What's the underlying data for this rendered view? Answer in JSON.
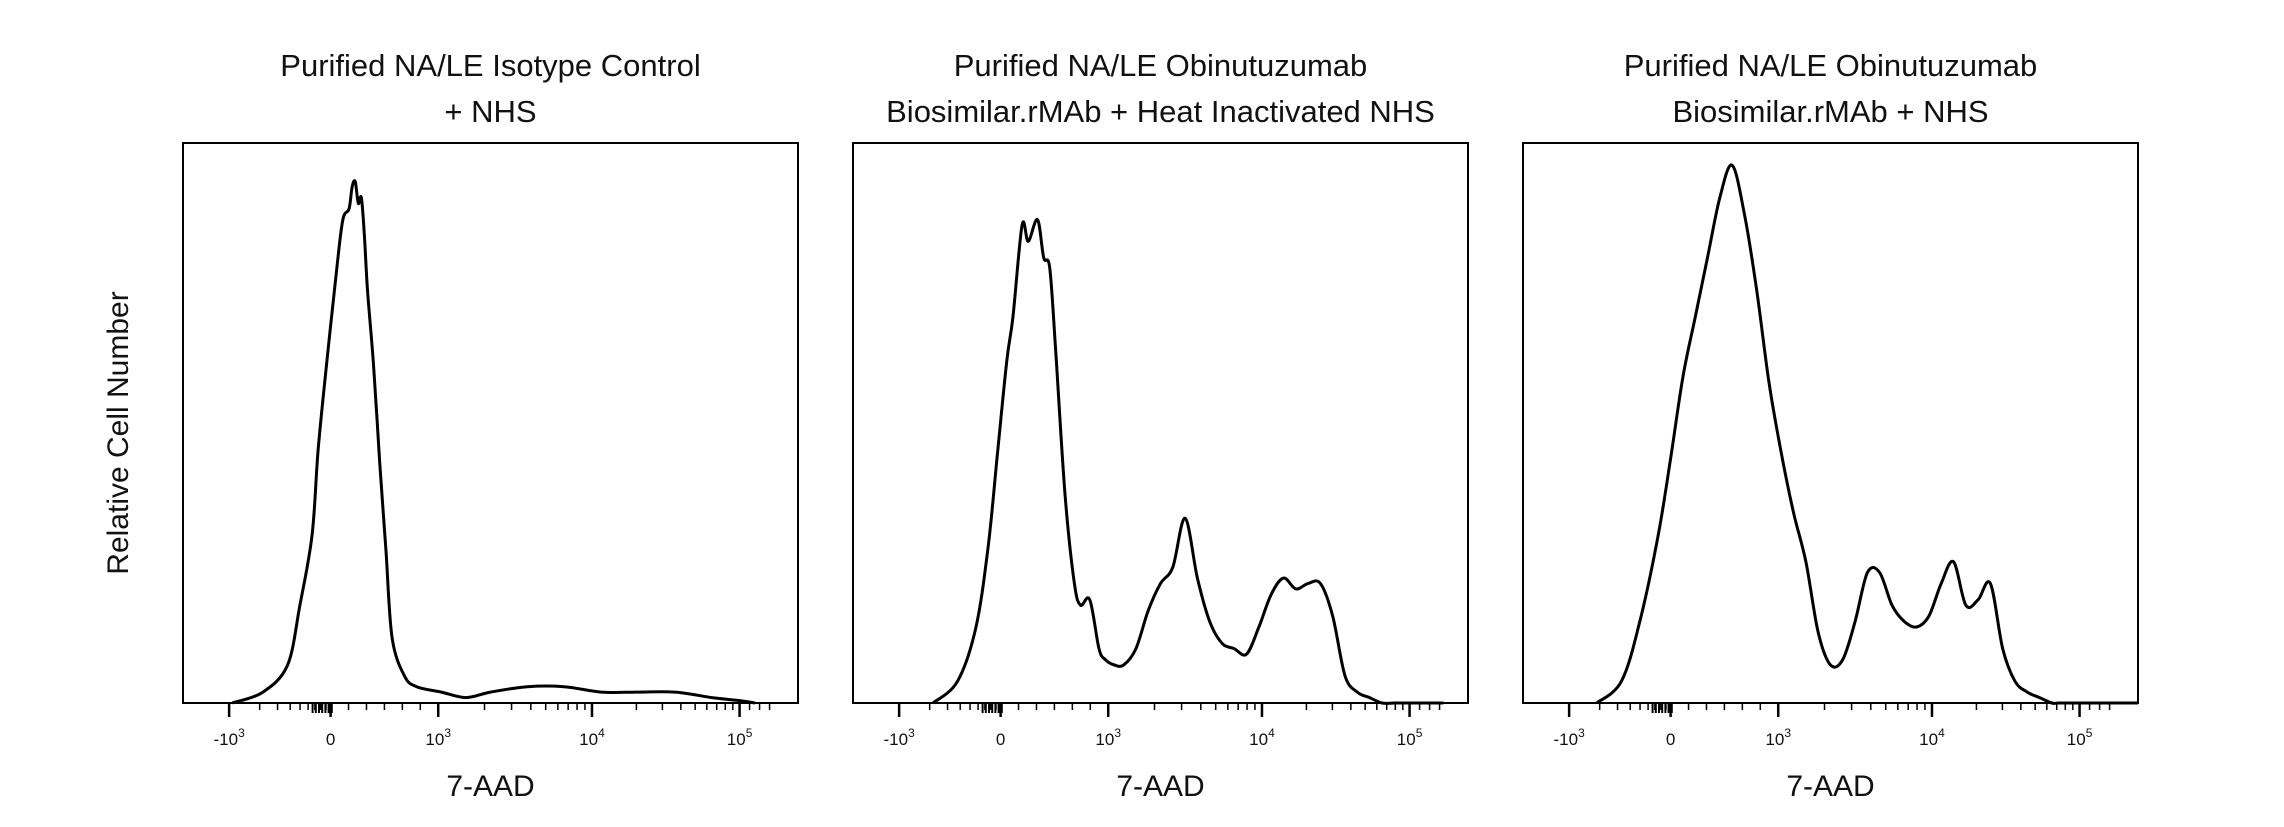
{
  "ylabel": "Relative Cell Number",
  "line_color": "#000000",
  "chart_data": [
    {
      "type": "line",
      "title_lines": [
        "Purified NA/LE Isotype Control",
        "+ NHS"
      ],
      "xlabel": "7-AAD",
      "x_scale": "biexponential",
      "x_tick_labels": [
        "-10^3",
        "0",
        "10^3",
        "10^4",
        "10^5"
      ],
      "y_ticks": "none",
      "series": [
        {
          "x": [
            0.08,
            0.13,
            0.17,
            0.19,
            0.21,
            0.22,
            0.235,
            0.25,
            0.26,
            0.27,
            0.275,
            0.28,
            0.285,
            0.29,
            0.295,
            0.3,
            0.31,
            0.32,
            0.33,
            0.34,
            0.36,
            0.38,
            0.42,
            0.46,
            0.5,
            0.56,
            0.62,
            0.68,
            0.74,
            0.8,
            0.86,
            0.9,
            0.93
          ],
          "y": [
            0.0,
            0.02,
            0.07,
            0.18,
            0.31,
            0.47,
            0.64,
            0.8,
            0.89,
            0.91,
            0.95,
            0.96,
            0.92,
            0.93,
            0.86,
            0.76,
            0.62,
            0.44,
            0.28,
            0.12,
            0.05,
            0.03,
            0.02,
            0.01,
            0.02,
            0.03,
            0.03,
            0.02,
            0.02,
            0.02,
            0.01,
            0.005,
            0.0
          ]
        }
      ]
    },
    {
      "type": "line",
      "title_lines": [
        "Purified NA/LE Obinutuzumab",
        "Biosimilar.rMAb + Heat Inactivated NHS"
      ],
      "xlabel": "7-AAD",
      "x_scale": "biexponential",
      "x_tick_labels": [
        "-10^3",
        "0",
        "10^3",
        "10^4",
        "10^5"
      ],
      "y_ticks": "none",
      "series": [
        {
          "x": [
            0.13,
            0.17,
            0.2,
            0.22,
            0.235,
            0.25,
            0.26,
            0.275,
            0.285,
            0.3,
            0.31,
            0.32,
            0.33,
            0.345,
            0.36,
            0.37,
            0.385,
            0.4,
            0.41,
            0.425,
            0.44,
            0.46,
            0.48,
            0.5,
            0.52,
            0.54,
            0.56,
            0.58,
            0.6,
            0.62,
            0.64,
            0.66,
            0.68,
            0.7,
            0.72,
            0.74,
            0.76,
            0.78,
            0.8,
            0.82,
            0.84,
            0.86,
            0.88,
            0.9,
            0.93,
            0.96
          ],
          "y": [
            0.0,
            0.04,
            0.14,
            0.29,
            0.46,
            0.63,
            0.71,
            0.88,
            0.85,
            0.89,
            0.82,
            0.8,
            0.64,
            0.38,
            0.22,
            0.18,
            0.19,
            0.1,
            0.08,
            0.07,
            0.07,
            0.1,
            0.17,
            0.22,
            0.25,
            0.34,
            0.23,
            0.15,
            0.11,
            0.1,
            0.09,
            0.14,
            0.2,
            0.23,
            0.21,
            0.22,
            0.22,
            0.16,
            0.05,
            0.02,
            0.01,
            0.0,
            0.0,
            0.0,
            0.0,
            0.0
          ]
        }
      ]
    },
    {
      "type": "line",
      "title_lines": [
        "Purified NA/LE Obinutuzumab",
        "Biosimilar.rMAb + NHS"
      ],
      "xlabel": "7-AAD",
      "x_scale": "biexponential",
      "x_tick_labels": [
        "-10^3",
        "0",
        "10^3",
        "10^4",
        "10^5"
      ],
      "y_ticks": "none",
      "series": [
        {
          "x": [
            0.12,
            0.16,
            0.19,
            0.22,
            0.24,
            0.26,
            0.28,
            0.3,
            0.32,
            0.34,
            0.36,
            0.38,
            0.4,
            0.42,
            0.44,
            0.46,
            0.48,
            0.5,
            0.52,
            0.54,
            0.56,
            0.58,
            0.6,
            0.62,
            0.64,
            0.66,
            0.68,
            0.7,
            0.72,
            0.74,
            0.76,
            0.78,
            0.8,
            0.82,
            0.84,
            0.86,
            0.87,
            0.88,
            0.9,
            0.93,
            0.95,
            0.98,
            1.0
          ],
          "y": [
            0.0,
            0.04,
            0.15,
            0.31,
            0.45,
            0.6,
            0.71,
            0.82,
            0.93,
            0.99,
            0.9,
            0.76,
            0.59,
            0.46,
            0.35,
            0.26,
            0.13,
            0.07,
            0.08,
            0.15,
            0.24,
            0.24,
            0.18,
            0.15,
            0.14,
            0.16,
            0.22,
            0.26,
            0.18,
            0.19,
            0.22,
            0.1,
            0.04,
            0.02,
            0.01,
            0.0,
            0.0,
            0.0,
            0.0,
            0.0,
            0.0,
            0.0,
            0.0
          ]
        }
      ]
    }
  ]
}
